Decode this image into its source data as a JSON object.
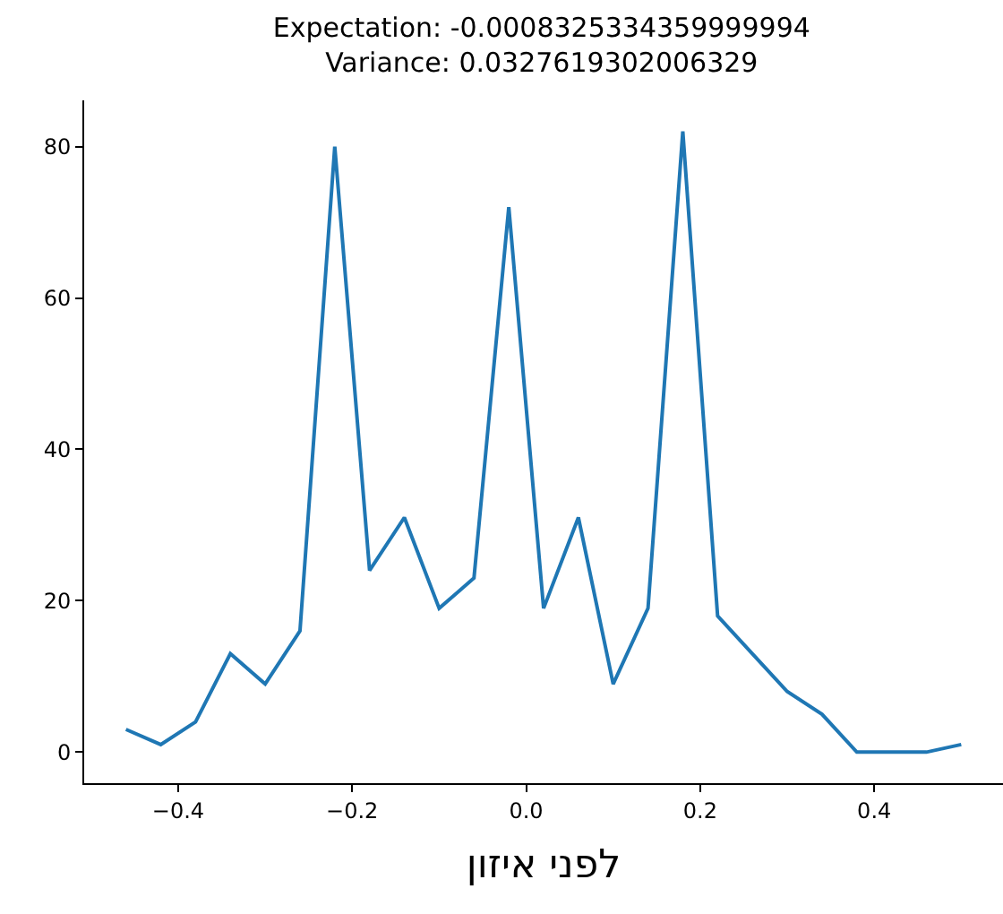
{
  "chart_data": {
    "type": "line",
    "title": "Expectation: -0.0008325334359999994\nVariance: 0.0327619302006329",
    "xlabel": "לפני איזון",
    "x": [
      -0.46,
      -0.42,
      -0.38,
      -0.34,
      -0.3,
      -0.26,
      -0.22,
      -0.18,
      -0.14,
      -0.1,
      -0.06,
      -0.02,
      0.02,
      0.06,
      0.1,
      0.14,
      0.18,
      0.22,
      0.26,
      0.3,
      0.34,
      0.38,
      0.42,
      0.46,
      0.5
    ],
    "series": [
      {
        "color": "#1f77b4",
        "values": [
          3,
          1,
          4,
          13,
          9,
          16,
          80,
          24,
          31,
          19,
          23,
          72,
          19,
          31,
          9,
          19,
          82,
          18,
          13,
          8,
          5,
          0,
          0,
          0,
          1
        ]
      }
    ],
    "xlim": [
      -0.508,
      0.548
    ],
    "ylim": [
      -4.1,
      86.1
    ],
    "xticks": [
      {
        "value": -0.4,
        "label": "−0.4"
      },
      {
        "value": -0.2,
        "label": "−0.2"
      },
      {
        "value": 0.0,
        "label": "0.0"
      },
      0.2,
      0.4
    ],
    "yticks": [
      0,
      20,
      40,
      60,
      80
    ]
  }
}
